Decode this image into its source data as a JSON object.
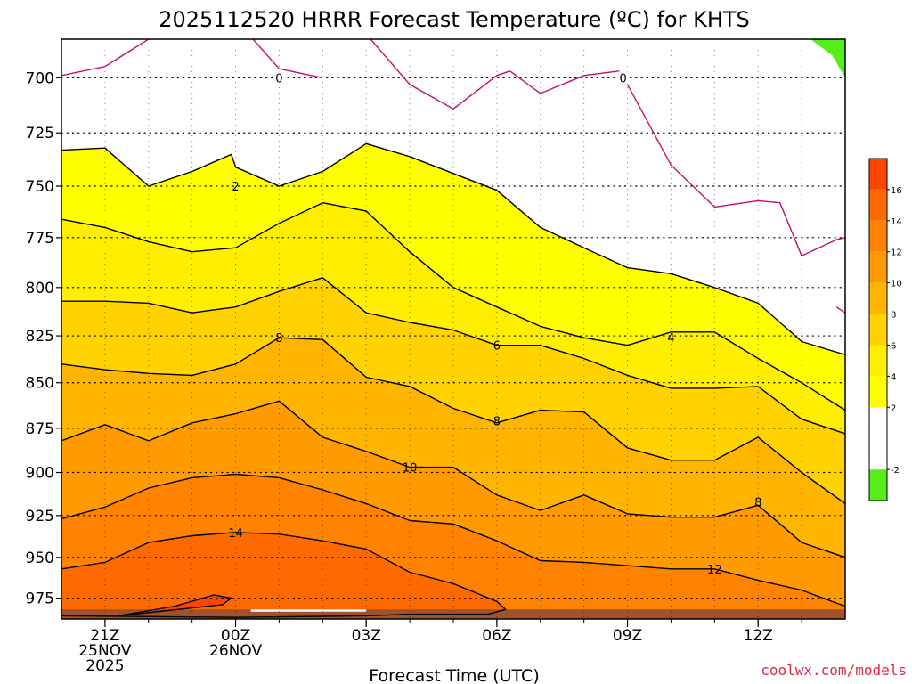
{
  "chart_data": {
    "type": "contour",
    "title": "2025112520 HRRR Forecast Temperature (ºC) for KHTS",
    "xlabel": "Forecast Time (UTC)",
    "ylabel": "",
    "y_scale": "log",
    "y_reversed": true,
    "ylim": [
      988,
      683
    ],
    "xlim": [
      -1,
      17
    ],
    "x_ticks": [
      {
        "hour": 0,
        "lines": [
          "21Z",
          "25NOV",
          "2025"
        ]
      },
      {
        "hour": 3,
        "lines": [
          "00Z",
          "26NOV"
        ]
      },
      {
        "hour": 6,
        "lines": [
          "03Z"
        ]
      },
      {
        "hour": 9,
        "lines": [
          "06Z"
        ]
      },
      {
        "hour": 12,
        "lines": [
          "09Z"
        ]
      },
      {
        "hour": 15,
        "lines": [
          "12Z"
        ]
      }
    ],
    "y_ticks": [
      700,
      725,
      750,
      775,
      800,
      825,
      850,
      875,
      900,
      925,
      950,
      975
    ],
    "grid": true,
    "colorbar": {
      "ticks": [
        -2,
        2,
        4,
        6,
        8,
        10,
        12,
        14,
        16
      ],
      "levels": [
        -4,
        -2,
        0,
        2,
        4,
        6,
        8,
        10,
        12,
        14,
        16,
        18
      ],
      "colors": [
        "#55ee1a",
        "#ffffff",
        "#ffffff",
        "#ffff00",
        "#ffee00",
        "#ffd200",
        "#ffb400",
        "#ff9a00",
        "#ff8200",
        "#ff6a00",
        "#ff4400"
      ]
    },
    "fill_colors": {
      "green": "#55ee1a",
      "white": "#ffffff",
      "yellow": "#ffff00",
      "t2": "#ffee00",
      "t4": "#ffd200",
      "t6": "#ffb400",
      "t8": "#ff9a00",
      "t10": "#ff8200",
      "t12": "#ff6a00",
      "t14": "#ff4400",
      "ground": "#a0522d"
    },
    "contours": [
      {
        "level": 0,
        "color": "#c0106e",
        "segments": [
          [
            [
              -1,
              699
            ],
            [
              0,
              695
            ],
            [
              1,
              683
            ]
          ],
          [
            [
              3.4,
              683
            ],
            [
              4,
              696
            ],
            [
              5,
              700
            ]
          ],
          [
            [
              6.1,
              683
            ],
            [
              7,
              703
            ],
            [
              8,
              714
            ],
            [
              9,
              699
            ],
            [
              9.3,
              697
            ],
            [
              10,
              707
            ],
            [
              11,
              699
            ],
            [
              11.8,
              697
            ],
            [
              12,
              703
            ],
            [
              13,
              740
            ],
            [
              14,
              760
            ],
            [
              15,
              757
            ],
            [
              15.5,
              758
            ],
            [
              16,
              784
            ],
            [
              16.8,
              776
            ],
            [
              17,
              775
            ]
          ],
          [
            [
              17,
              813
            ],
            [
              16.8,
              810
            ]
          ]
        ],
        "labels": [
          {
            "x": 4,
            "p": 700,
            "text": "0"
          },
          {
            "x": 11.9,
            "p": 700,
            "text": "0"
          }
        ]
      },
      {
        "level": 2,
        "color": "#000000",
        "segments": [
          [
            [
              -1,
              733
            ],
            [
              0,
              732
            ],
            [
              1,
              750
            ],
            [
              2,
              743
            ],
            [
              2.9,
              735
            ],
            [
              3,
              741
            ],
            [
              4,
              750
            ],
            [
              5,
              743
            ],
            [
              6,
              730
            ],
            [
              7,
              736
            ],
            [
              8,
              744
            ],
            [
              9,
              752
            ],
            [
              10,
              770
            ],
            [
              11,
              780
            ],
            [
              12,
              790
            ],
            [
              13,
              793
            ],
            [
              14,
              800
            ],
            [
              15,
              808
            ],
            [
              16,
              828
            ],
            [
              17,
              835
            ]
          ]
        ],
        "labels": [
          {
            "x": 3,
            "p": 750,
            "text": "2"
          }
        ]
      },
      {
        "level": 4,
        "color": "#000000",
        "segments": [
          [
            [
              -1,
              766
            ],
            [
              0,
              770
            ],
            [
              1,
              777
            ],
            [
              2,
              782
            ],
            [
              3,
              780
            ],
            [
              4,
              768
            ],
            [
              5,
              758
            ],
            [
              6,
              762
            ],
            [
              7,
              782
            ],
            [
              8,
              800
            ],
            [
              9,
              810
            ],
            [
              10,
              820
            ],
            [
              11,
              826
            ],
            [
              12,
              830
            ],
            [
              13,
              823
            ],
            [
              14,
              823
            ],
            [
              15,
              837
            ],
            [
              16,
              850
            ],
            [
              17,
              865
            ]
          ]
        ],
        "labels": [
          {
            "x": 13,
            "p": 826,
            "text": "4"
          }
        ]
      },
      {
        "level": 6,
        "color": "#000000",
        "segments": [
          [
            [
              -1,
              807
            ],
            [
              0,
              807
            ],
            [
              1,
              808
            ],
            [
              2,
              813
            ],
            [
              3,
              810
            ],
            [
              4,
              802
            ],
            [
              5,
              795
            ],
            [
              6,
              813
            ],
            [
              7,
              818
            ],
            [
              8,
              822
            ],
            [
              9,
              830
            ],
            [
              10,
              830
            ],
            [
              11,
              837
            ],
            [
              12,
              846
            ],
            [
              13,
              853
            ],
            [
              14,
              853
            ],
            [
              15,
              852
            ],
            [
              16,
              870
            ],
            [
              17,
              878
            ]
          ]
        ],
        "labels": [
          {
            "x": 9,
            "p": 830,
            "text": "6"
          }
        ]
      },
      {
        "level": 8,
        "color": "#000000",
        "segments": [
          [
            [
              -1,
              840
            ],
            [
              0,
              843
            ],
            [
              1,
              845
            ],
            [
              2,
              846
            ],
            [
              3,
              840
            ],
            [
              4,
              826
            ],
            [
              5,
              827
            ],
            [
              6,
              847
            ],
            [
              7,
              852
            ],
            [
              8,
              864
            ],
            [
              9,
              872
            ],
            [
              10,
              865
            ],
            [
              11,
              866
            ],
            [
              12,
              886
            ],
            [
              13,
              893
            ],
            [
              14,
              893
            ],
            [
              15,
              880
            ],
            [
              16,
              900
            ],
            [
              17,
              918
            ]
          ]
        ],
        "labels": [
          {
            "x": 4,
            "p": 826,
            "text": "8"
          },
          {
            "x": 9,
            "p": 871,
            "text": "8"
          },
          {
            "x": 15,
            "p": 917,
            "text": "8"
          }
        ]
      },
      {
        "level": 10,
        "color": "#000000",
        "segments": [
          [
            [
              -1,
              882
            ],
            [
              0,
              873
            ],
            [
              1,
              882
            ],
            [
              2,
              872
            ],
            [
              3,
              867
            ],
            [
              4,
              860
            ],
            [
              5,
              880
            ],
            [
              6,
              888
            ],
            [
              7,
              897
            ],
            [
              8,
              897
            ],
            [
              9,
              913
            ],
            [
              10,
              922
            ],
            [
              11,
              913
            ],
            [
              12,
              924
            ],
            [
              13,
              926
            ],
            [
              14,
              926
            ],
            [
              15,
              919
            ],
            [
              16,
              941
            ],
            [
              17,
              950
            ]
          ]
        ],
        "labels": [
          {
            "x": 7,
            "p": 897,
            "text": "10"
          }
        ]
      },
      {
        "level": 12,
        "color": "#000000",
        "segments": [
          [
            [
              -1,
              927
            ],
            [
              0,
              920
            ],
            [
              1,
              909
            ],
            [
              2,
              903
            ],
            [
              3,
              901
            ],
            [
              4,
              903
            ],
            [
              5,
              910
            ],
            [
              6,
              918
            ],
            [
              7,
              928
            ],
            [
              8,
              930
            ],
            [
              9,
              940
            ],
            [
              10,
              952
            ],
            [
              11,
              953
            ],
            [
              12,
              955
            ],
            [
              13,
              957
            ],
            [
              14,
              957
            ],
            [
              15,
              964
            ],
            [
              16,
              970
            ],
            [
              17,
              980
            ]
          ]
        ],
        "labels": [
          {
            "x": 14,
            "p": 957,
            "text": "12"
          }
        ]
      },
      {
        "level": 14,
        "color": "#000000",
        "segments": [
          [
            [
              -1,
              957
            ],
            [
              0,
              953
            ],
            [
              1,
              941
            ],
            [
              2,
              937
            ],
            [
              3,
              935
            ],
            [
              4,
              936
            ],
            [
              5,
              940
            ],
            [
              6,
              945
            ],
            [
              7,
              959
            ],
            [
              8,
              966
            ],
            [
              9,
              977
            ],
            [
              9.2,
              982
            ],
            [
              8.8,
              985
            ],
            [
              7,
              985
            ],
            [
              6,
              986
            ],
            [
              3,
              987
            ],
            [
              -1,
              986
            ]
          ]
        ],
        "labels": [
          {
            "x": 3,
            "p": 935,
            "text": "14"
          }
        ]
      },
      {
        "level": 16,
        "color": "#000000",
        "segments": [
          [
            [
              0.3,
              986
            ],
            [
              1.6,
              980
            ],
            [
              2.5,
              973
            ],
            [
              2.9,
              975
            ],
            [
              2.7,
              979
            ],
            [
              0.3,
              986
            ]
          ]
        ],
        "labels": []
      }
    ],
    "ground": {
      "top_hpa": 982
    },
    "ground_notch": {
      "x_start": 3.35,
      "x_end": 6.0
    }
  },
  "credit": "coolwx.com/models"
}
